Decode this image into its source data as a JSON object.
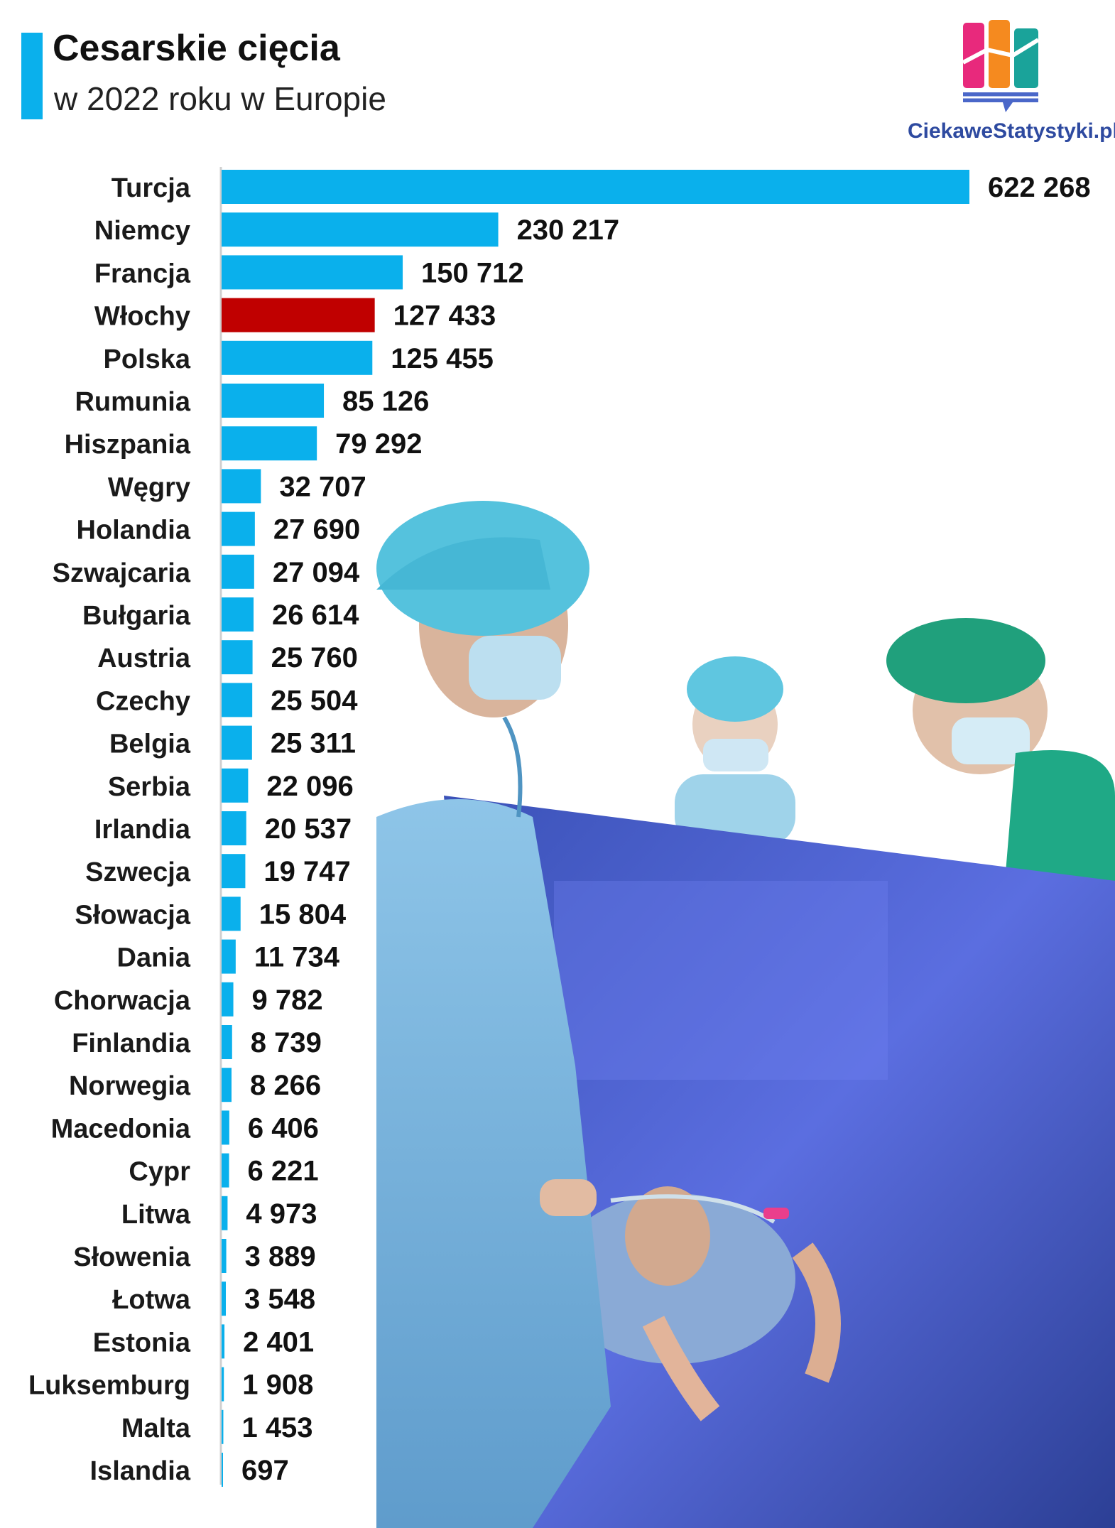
{
  "header": {
    "title": "Cesarskie cięcia",
    "subtitle": "w 2022 roku w Europie"
  },
  "brand": {
    "name": "CiekaweStatystyki.pl",
    "logo_icon": "bar-chart-logo-icon",
    "logo_colors": [
      "#e8297c",
      "#f58a1f",
      "#1aa39a",
      "#4a67c9"
    ]
  },
  "photo": {
    "icon": "surgeons-operating-photo"
  },
  "colors": {
    "accent": "#0ab0ec",
    "bar": "#0ab0ec",
    "highlight": "#c00000"
  },
  "chart_data": {
    "type": "bar",
    "orientation": "horizontal",
    "title": "Cesarskie cięcia",
    "subtitle": "w 2022 roku w Europie",
    "categories": [
      "Turcja",
      "Niemcy",
      "Francja",
      "Włochy",
      "Polska",
      "Rumunia",
      "Hiszpania",
      "Węgry",
      "Holandia",
      "Szwajcaria",
      "Bułgaria",
      "Austria",
      "Czechy",
      "Belgia",
      "Serbia",
      "Irlandia",
      "Szwecja",
      "Słowacja",
      "Dania",
      "Chorwacja",
      "Finlandia",
      "Norwegia",
      "Macedonia",
      "Cypr",
      "Litwa",
      "Słowenia",
      "Łotwa",
      "Estonia",
      "Luksemburg",
      "Malta",
      "Islandia"
    ],
    "values": [
      622268,
      230217,
      150712,
      127433,
      125455,
      85126,
      79292,
      32707,
      27690,
      27094,
      26614,
      25760,
      25504,
      25311,
      22096,
      20537,
      19747,
      15804,
      11734,
      9782,
      8739,
      8266,
      6406,
      6221,
      4973,
      3889,
      3548,
      2401,
      1908,
      1453,
      697
    ],
    "value_labels": [
      "622 268",
      "230 217",
      "150 712",
      "127 433",
      "125 455",
      "85 126",
      "79 292",
      "32 707",
      "27 690",
      "27 094",
      "26 614",
      "25 760",
      "25 504",
      "25 311",
      "22 096",
      "20 537",
      "19 747",
      "15 804",
      "11 734",
      "9 782",
      "8 739",
      "8 266",
      "6 406",
      "6 221",
      "4 973",
      "3 889",
      "3 548",
      "2 401",
      "1 908",
      "1 453",
      "697"
    ],
    "highlight": "Włochy",
    "xlim": [
      0,
      622268
    ],
    "grid": false,
    "legend": "none"
  }
}
